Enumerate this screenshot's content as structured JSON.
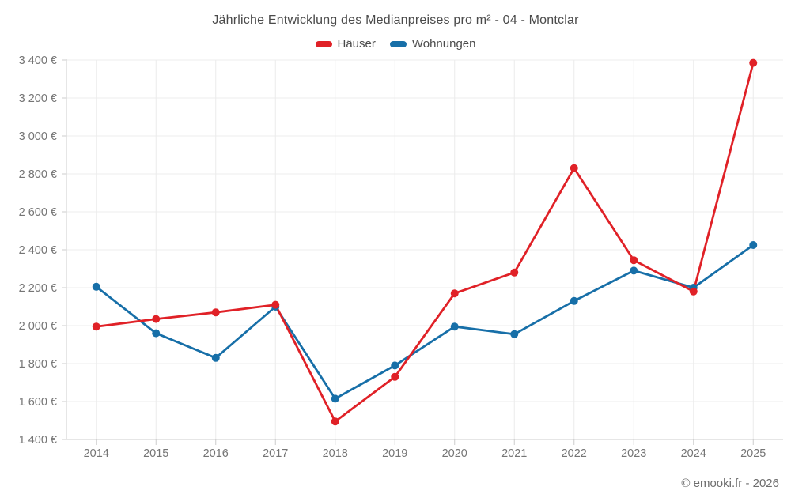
{
  "header": {
    "title": "Jährliche Entwicklung des Medianpreises pro m² - 04 - Montclar"
  },
  "footer": {
    "credit": "© emooki.fr - 2026"
  },
  "chart_data": {
    "type": "line",
    "title": "Jährliche Entwicklung des Medianpreises pro m² - 04 - Montclar",
    "x": [
      "2014",
      "2015",
      "2016",
      "2017",
      "2018",
      "2019",
      "2020",
      "2021",
      "2022",
      "2023",
      "2024",
      "2025"
    ],
    "series": [
      {
        "name": "Häuser",
        "color": "#e02127",
        "values": [
          1995,
          2035,
          2070,
          2110,
          1495,
          1730,
          2170,
          2280,
          2830,
          2345,
          2180,
          3385
        ]
      },
      {
        "name": "Wohnungen",
        "color": "#176fa8",
        "values": [
          2205,
          1960,
          1830,
          2100,
          1615,
          1790,
          1995,
          1955,
          2130,
          2290,
          2200,
          2425
        ]
      }
    ],
    "xlabel": "",
    "ylabel": "",
    "y_unit": "€",
    "ylim": [
      1400,
      3400
    ],
    "y_step": 200,
    "grid": true,
    "legend_position": "top",
    "style": {
      "grid_color": "#ececec",
      "axis_color": "#cccccc",
      "tick_label_color": "#757575",
      "title_color": "#4a4a4a"
    }
  }
}
